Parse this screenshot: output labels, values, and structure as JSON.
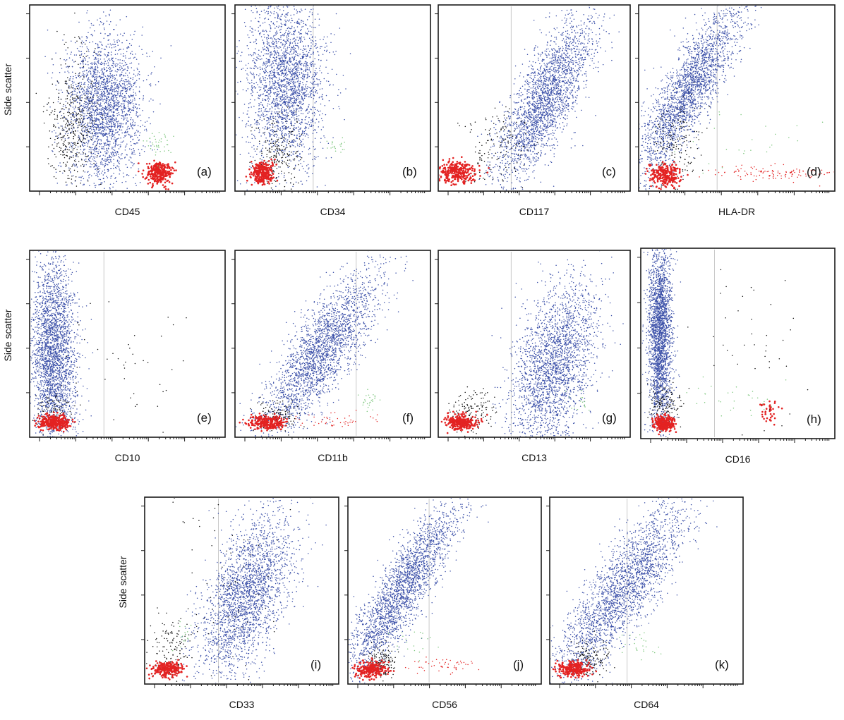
{
  "colors": {
    "blast": "#3a4fa8",
    "debris": "#111111",
    "lymph": "#e32222",
    "other": "#7fc77f",
    "gate": "#c9c9c9"
  },
  "chart_data": [
    {
      "type": "scatter",
      "panel": "(a)",
      "xlabel": "CD45",
      "ylabel": "Side scatter",
      "xscale": "log",
      "xlim": [
        0.0,
        1.0
      ],
      "ylim": [
        0.0,
        1.0
      ],
      "populations": [
        {
          "color": "blast",
          "center": [
            0.38,
            0.45
          ],
          "spread": [
            0.1,
            0.2
          ],
          "count": 2400
        },
        {
          "color": "debris",
          "center": [
            0.22,
            0.35
          ],
          "spread": [
            0.06,
            0.2
          ],
          "count": 420
        },
        {
          "color": "lymph",
          "center": [
            0.66,
            0.1
          ],
          "spread": [
            0.03,
            0.03
          ],
          "count": 300
        },
        {
          "color": "other",
          "center": [
            0.66,
            0.25
          ],
          "spread": [
            0.03,
            0.05
          ],
          "count": 40
        }
      ]
    },
    {
      "type": "scatter",
      "panel": "(b)",
      "xlabel": "CD34",
      "ylabel": "",
      "xscale": "log",
      "xlim": [
        0.0,
        1.0
      ],
      "ylim": [
        0.0,
        1.0
      ],
      "gate_x": 0.4,
      "populations": [
        {
          "color": "blast",
          "center": [
            0.26,
            0.58
          ],
          "spread": [
            0.1,
            0.22
          ],
          "count": 2400
        },
        {
          "color": "debris",
          "center": [
            0.22,
            0.2
          ],
          "spread": [
            0.06,
            0.12
          ],
          "count": 220
        },
        {
          "color": "lymph",
          "center": [
            0.14,
            0.1
          ],
          "spread": [
            0.03,
            0.03
          ],
          "count": 260
        },
        {
          "color": "other",
          "center": [
            0.52,
            0.24
          ],
          "spread": [
            0.03,
            0.03
          ],
          "count": 20
        }
      ]
    },
    {
      "type": "scatter",
      "panel": "(c)",
      "xlabel": "CD117",
      "ylabel": "",
      "xscale": "log",
      "xlim": [
        0.0,
        1.0
      ],
      "ylim": [
        0.0,
        1.0
      ],
      "gate_x": 0.38,
      "populations": [
        {
          "color": "blast",
          "center": [
            0.56,
            0.5
          ],
          "spread": [
            0.08,
            0.22
          ],
          "count": 2400,
          "slope": 0.45
        },
        {
          "color": "debris",
          "center": [
            0.3,
            0.25
          ],
          "spread": [
            0.08,
            0.1
          ],
          "count": 140
        },
        {
          "color": "lymph",
          "center": [
            0.1,
            0.1
          ],
          "spread": [
            0.05,
            0.03
          ],
          "count": 300
        }
      ]
    },
    {
      "type": "scatter",
      "panel": "(d)",
      "xlabel": "HLA-DR",
      "ylabel": "",
      "xscale": "log",
      "xlim": [
        0.0,
        1.0
      ],
      "ylim": [
        0.0,
        1.0
      ],
      "gate_x": 0.4,
      "populations": [
        {
          "color": "blast",
          "center": [
            0.26,
            0.55
          ],
          "spread": [
            0.07,
            0.24
          ],
          "count": 2400,
          "slope": 0.5
        },
        {
          "color": "debris",
          "center": [
            0.2,
            0.26
          ],
          "spread": [
            0.06,
            0.12
          ],
          "count": 160
        },
        {
          "color": "lymph",
          "center": [
            0.14,
            0.09
          ],
          "spread": [
            0.04,
            0.03
          ],
          "count": 240
        },
        {
          "color": "lymph",
          "center": [
            0.7,
            0.1
          ],
          "spread": [
            0.16,
            0.02
          ],
          "count": 120
        },
        {
          "color": "other",
          "center": [
            0.55,
            0.28
          ],
          "spread": [
            0.15,
            0.08
          ],
          "count": 25
        }
      ]
    },
    {
      "type": "scatter",
      "panel": "(e)",
      "xlabel": "CD10",
      "ylabel": "Side scatter",
      "xscale": "log",
      "xlim": [
        0.0,
        1.0
      ],
      "ylim": [
        0.0,
        1.0
      ],
      "gate_x": 0.38,
      "populations": [
        {
          "color": "blast",
          "center": [
            0.12,
            0.45
          ],
          "spread": [
            0.06,
            0.26
          ],
          "count": 2700
        },
        {
          "color": "debris",
          "center": [
            0.12,
            0.15
          ],
          "spread": [
            0.05,
            0.05
          ],
          "count": 90
        },
        {
          "color": "lymph",
          "center": [
            0.13,
            0.08
          ],
          "spread": [
            0.04,
            0.02
          ],
          "count": 320
        },
        {
          "color": "debris",
          "center": [
            0.5,
            0.35
          ],
          "spread": [
            0.18,
            0.18
          ],
          "count": 40
        }
      ]
    },
    {
      "type": "scatter",
      "panel": "(f)",
      "xlabel": "CD11b",
      "ylabel": "",
      "xscale": "log",
      "xlim": [
        0.0,
        1.0
      ],
      "ylim": [
        0.0,
        1.0
      ],
      "gate_x": 0.62,
      "populations": [
        {
          "color": "blast",
          "center": [
            0.44,
            0.45
          ],
          "spread": [
            0.09,
            0.22
          ],
          "count": 2400,
          "slope": 0.55
        },
        {
          "color": "debris",
          "center": [
            0.22,
            0.12
          ],
          "spread": [
            0.05,
            0.04
          ],
          "count": 120
        },
        {
          "color": "lymph",
          "center": [
            0.16,
            0.08
          ],
          "spread": [
            0.05,
            0.02
          ],
          "count": 260
        },
        {
          "color": "lymph",
          "center": [
            0.45,
            0.09
          ],
          "spread": [
            0.14,
            0.02
          ],
          "count": 50
        },
        {
          "color": "other",
          "center": [
            0.68,
            0.2
          ],
          "spread": [
            0.03,
            0.03
          ],
          "count": 25
        }
      ]
    },
    {
      "type": "scatter",
      "panel": "(g)",
      "xlabel": "CD13",
      "ylabel": "",
      "xscale": "log",
      "xlim": [
        0.0,
        1.0
      ],
      "ylim": [
        0.0,
        1.0
      ],
      "gate_x": 0.38,
      "populations": [
        {
          "color": "blast",
          "center": [
            0.6,
            0.38
          ],
          "spread": [
            0.1,
            0.22
          ],
          "count": 2400,
          "slope": 0.2
        },
        {
          "color": "debris",
          "center": [
            0.18,
            0.14
          ],
          "spread": [
            0.06,
            0.06
          ],
          "count": 140
        },
        {
          "color": "lymph",
          "center": [
            0.12,
            0.08
          ],
          "spread": [
            0.04,
            0.02
          ],
          "count": 300
        },
        {
          "color": "other",
          "center": [
            0.75,
            0.18
          ],
          "spread": [
            0.03,
            0.03
          ],
          "count": 15
        }
      ]
    },
    {
      "type": "scatter",
      "panel": "(h)",
      "xlabel": "CD16",
      "ylabel": "",
      "xscale": "log",
      "xlim": [
        0.0,
        1.0
      ],
      "ylim": [
        0.0,
        1.0
      ],
      "gate_x": 0.38,
      "populations": [
        {
          "color": "blast",
          "center": [
            0.1,
            0.55
          ],
          "spread": [
            0.03,
            0.24
          ],
          "count": 2400
        },
        {
          "color": "debris",
          "center": [
            0.12,
            0.18
          ],
          "spread": [
            0.04,
            0.06
          ],
          "count": 140
        },
        {
          "color": "lymph",
          "center": [
            0.12,
            0.08
          ],
          "spread": [
            0.03,
            0.02
          ],
          "count": 260
        },
        {
          "color": "lymph",
          "center": [
            0.66,
            0.14
          ],
          "spread": [
            0.03,
            0.03
          ],
          "count": 40
        },
        {
          "color": "other",
          "center": [
            0.5,
            0.2
          ],
          "spread": [
            0.18,
            0.05
          ],
          "count": 30
        },
        {
          "color": "debris",
          "center": [
            0.62,
            0.5
          ],
          "spread": [
            0.18,
            0.2
          ],
          "count": 40
        }
      ]
    },
    {
      "type": "scatter",
      "panel": "(i)",
      "xlabel": "CD33",
      "ylabel": "Side scatter",
      "xscale": "log",
      "xlim": [
        0.0,
        1.0
      ],
      "ylim": [
        0.0,
        1.0
      ],
      "gate_x": 0.38,
      "populations": [
        {
          "color": "blast",
          "center": [
            0.52,
            0.48
          ],
          "spread": [
            0.1,
            0.22
          ],
          "count": 2400,
          "slope": 0.3
        },
        {
          "color": "debris",
          "center": [
            0.14,
            0.18
          ],
          "spread": [
            0.05,
            0.1
          ],
          "count": 140
        },
        {
          "color": "lymph",
          "center": [
            0.12,
            0.08
          ],
          "spread": [
            0.04,
            0.02
          ],
          "count": 260
        },
        {
          "color": "other",
          "center": [
            0.2,
            0.26
          ],
          "spread": [
            0.03,
            0.04
          ],
          "count": 15
        },
        {
          "color": "debris",
          "center": [
            0.4,
            0.55
          ],
          "spread": [
            0.16,
            0.22
          ],
          "count": 60
        }
      ]
    },
    {
      "type": "scatter",
      "panel": "(j)",
      "xlabel": "CD56",
      "ylabel": "",
      "xscale": "log",
      "xlim": [
        0.0,
        1.0
      ],
      "ylim": [
        0.0,
        1.0
      ],
      "gate_x": 0.42,
      "populations": [
        {
          "color": "blast",
          "center": [
            0.28,
            0.5
          ],
          "spread": [
            0.07,
            0.24
          ],
          "count": 2400,
          "slope": 0.55
        },
        {
          "color": "debris",
          "center": [
            0.18,
            0.12
          ],
          "spread": [
            0.04,
            0.04
          ],
          "count": 140
        },
        {
          "color": "lymph",
          "center": [
            0.12,
            0.08
          ],
          "spread": [
            0.04,
            0.02
          ],
          "count": 260
        },
        {
          "color": "lymph",
          "center": [
            0.48,
            0.1
          ],
          "spread": [
            0.08,
            0.02
          ],
          "count": 50
        },
        {
          "color": "other",
          "center": [
            0.34,
            0.22
          ],
          "spread": [
            0.08,
            0.04
          ],
          "count": 20
        }
      ]
    },
    {
      "type": "scatter",
      "panel": "(k)",
      "xlabel": "CD64",
      "ylabel": "",
      "xscale": "log",
      "xlim": [
        0.0,
        1.0
      ],
      "ylim": [
        0.0,
        1.0
      ],
      "gate_x": 0.4,
      "populations": [
        {
          "color": "blast",
          "center": [
            0.38,
            0.5
          ],
          "spread": [
            0.09,
            0.24
          ],
          "count": 2400,
          "slope": 0.6
        },
        {
          "color": "debris",
          "center": [
            0.2,
            0.14
          ],
          "spread": [
            0.05,
            0.05
          ],
          "count": 140
        },
        {
          "color": "lymph",
          "center": [
            0.12,
            0.08
          ],
          "spread": [
            0.04,
            0.02
          ],
          "count": 260
        },
        {
          "color": "other",
          "center": [
            0.46,
            0.22
          ],
          "spread": [
            0.06,
            0.04
          ],
          "count": 25
        }
      ]
    }
  ]
}
